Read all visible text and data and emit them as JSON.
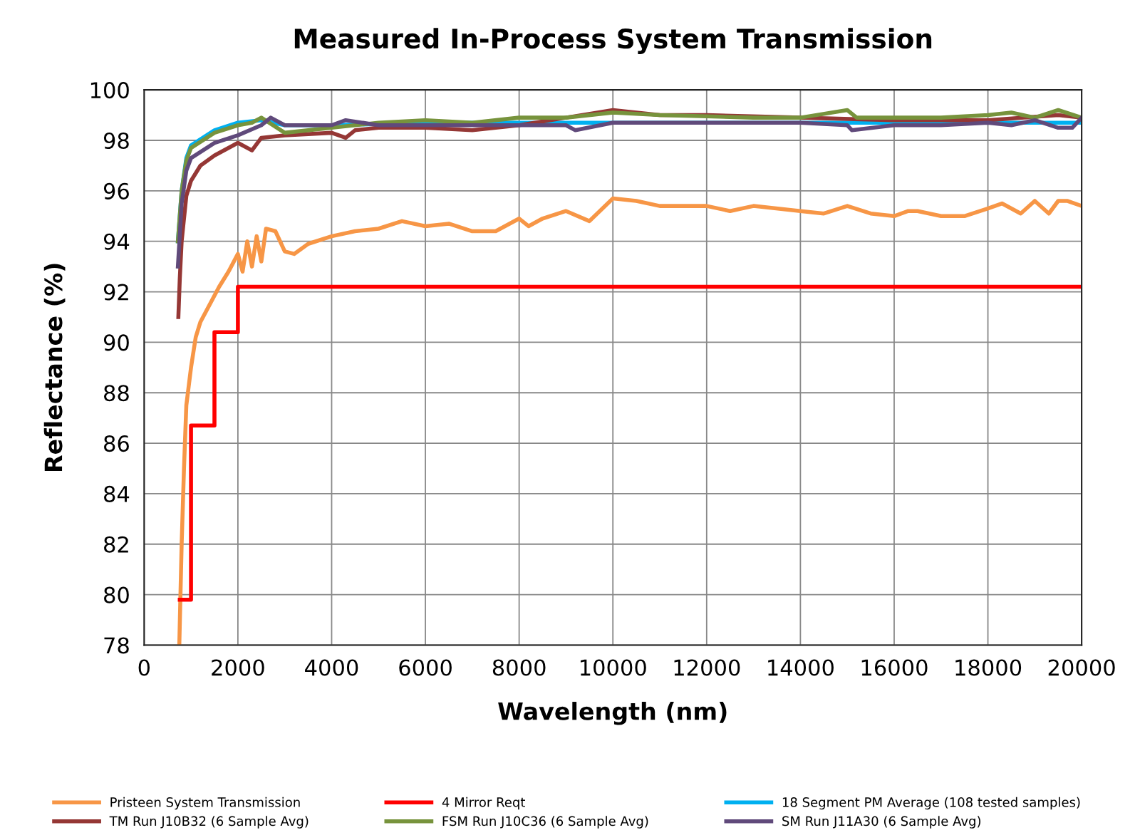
{
  "chart_data": {
    "type": "line",
    "title": "Measured In-Process System Transmission",
    "xlabel": "Wavelength (nm)",
    "ylabel": "Reflectance (%)",
    "xlim": [
      0,
      20000
    ],
    "xticks": [
      0,
      2000,
      4000,
      6000,
      8000,
      10000,
      12000,
      14000,
      16000,
      18000,
      20000
    ],
    "ylim": [
      78,
      100
    ],
    "yticks": [
      78,
      80,
      82,
      84,
      86,
      88,
      90,
      92,
      94,
      96,
      98,
      100
    ],
    "grid": true,
    "legend": "bottom",
    "series": [
      {
        "name": "Pristeen System Transmission",
        "color": "#f79646",
        "x": [
          750,
          800,
          850,
          900,
          1000,
          1100,
          1200,
          1400,
          1600,
          1800,
          2000,
          2100,
          2200,
          2300,
          2400,
          2500,
          2600,
          2800,
          3000,
          3200,
          3500,
          4000,
          4500,
          5000,
          5500,
          6000,
          6500,
          7000,
          7500,
          8000,
          8200,
          8500,
          9000,
          9500,
          10000,
          10500,
          11000,
          12000,
          12500,
          13000,
          14000,
          14500,
          15000,
          15500,
          16000,
          16300,
          16500,
          17000,
          17500,
          18000,
          18300,
          18700,
          19000,
          19300,
          19500,
          19700,
          20000
        ],
        "values": [
          78,
          82,
          85,
          87.5,
          89,
          90.2,
          90.8,
          91.5,
          92.2,
          92.8,
          93.5,
          92.8,
          94,
          93,
          94.2,
          93.2,
          94.5,
          94.4,
          93.6,
          93.5,
          93.9,
          94.2,
          94.4,
          94.5,
          94.8,
          94.6,
          94.7,
          94.4,
          94.4,
          94.9,
          94.6,
          94.9,
          95.2,
          94.8,
          95.7,
          95.6,
          95.4,
          95.4,
          95.2,
          95.4,
          95.2,
          95.1,
          95.4,
          95.1,
          95.0,
          95.2,
          95.2,
          95.0,
          95.0,
          95.3,
          95.5,
          95.1,
          95.6,
          95.1,
          95.6,
          95.6,
          95.4
        ]
      },
      {
        "name": "4 Mirror Reqt",
        "type": "step",
        "color": "#ff0000",
        "x": [
          760,
          1000,
          1500,
          2000,
          20000
        ],
        "values": [
          79.8,
          86.7,
          90.4,
          92.2,
          92.2
        ]
      },
      {
        "name": "18 Segment PM Average (108 tested samples)",
        "color": "#00b0f0",
        "x": [
          720,
          800,
          900,
          1000,
          1500,
          2000,
          2500,
          3000,
          4000,
          6000,
          8000,
          10000,
          12000,
          14000,
          16000,
          18000,
          20000
        ],
        "values": [
          94,
          96,
          97.3,
          97.8,
          98.4,
          98.7,
          98.8,
          98.6,
          98.6,
          98.7,
          98.7,
          98.7,
          98.7,
          98.7,
          98.7,
          98.7,
          98.7
        ]
      },
      {
        "name": "TM Run J10B32 (6 Sample Avg)",
        "color": "#953735",
        "x": [
          730,
          760,
          800,
          900,
          1000,
          1200,
          1500,
          2000,
          2300,
          2500,
          3000,
          4000,
          4300,
          4500,
          5000,
          6000,
          7000,
          8000,
          9000,
          10000,
          11000,
          12000,
          14000,
          16000,
          18000,
          19500,
          20000
        ],
        "values": [
          91,
          92.5,
          94,
          95.8,
          96.4,
          97.0,
          97.4,
          97.9,
          97.6,
          98.1,
          98.2,
          98.3,
          98.1,
          98.4,
          98.5,
          98.5,
          98.4,
          98.6,
          98.9,
          99.2,
          99.0,
          99.0,
          98.9,
          98.8,
          98.8,
          99.0,
          98.9
        ]
      },
      {
        "name": "FSM Run J10C36 (6 Sample Avg)",
        "color": "#77933c",
        "x": [
          720,
          800,
          900,
          1000,
          1500,
          2000,
          2300,
          2500,
          3000,
          4000,
          5000,
          6000,
          7000,
          8000,
          9000,
          10000,
          11000,
          12000,
          13000,
          14000,
          15000,
          15200,
          16000,
          17000,
          18000,
          18500,
          19000,
          19500,
          20000
        ],
        "values": [
          94,
          96,
          97.2,
          97.7,
          98.3,
          98.6,
          98.7,
          98.9,
          98.3,
          98.5,
          98.7,
          98.8,
          98.7,
          98.9,
          98.9,
          99.1,
          99.0,
          98.95,
          98.9,
          98.9,
          99.2,
          98.9,
          98.9,
          98.9,
          99.0,
          99.1,
          98.9,
          99.2,
          98.9
        ]
      },
      {
        "name": "SM Run J11A30 (6 Sample Avg)",
        "color": "#604a7b",
        "x": [
          720,
          800,
          900,
          1000,
          1500,
          2000,
          2500,
          2700,
          3000,
          4000,
          4300,
          5000,
          6000,
          7000,
          8000,
          9000,
          9200,
          10000,
          12000,
          14000,
          15000,
          15100,
          16000,
          17000,
          18000,
          18500,
          19000,
          19500,
          19800,
          20000
        ],
        "values": [
          93,
          95.5,
          96.8,
          97.3,
          97.9,
          98.2,
          98.6,
          98.9,
          98.6,
          98.6,
          98.8,
          98.6,
          98.6,
          98.6,
          98.6,
          98.6,
          98.4,
          98.7,
          98.7,
          98.7,
          98.6,
          98.4,
          98.6,
          98.6,
          98.7,
          98.6,
          98.8,
          98.5,
          98.5,
          98.9
        ]
      }
    ]
  }
}
